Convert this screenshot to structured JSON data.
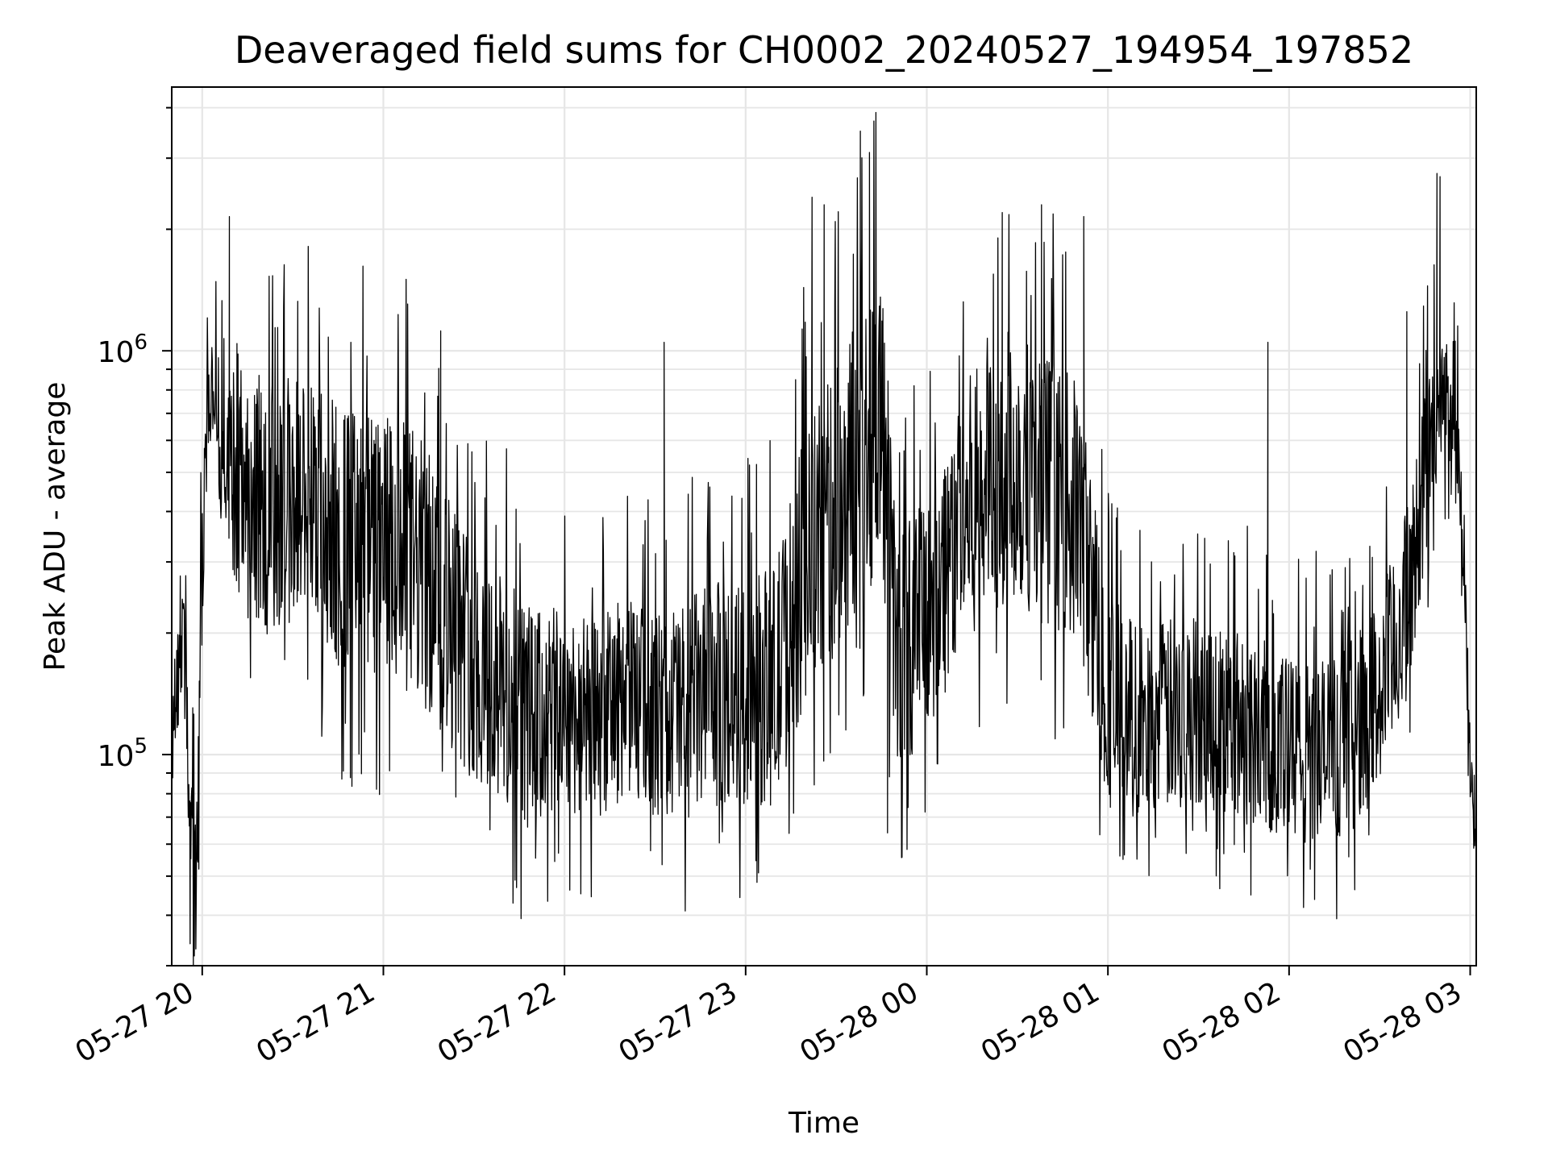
{
  "chart_data": {
    "type": "line",
    "title": "Deaveraged field sums for CH0002_20240527_194954_197852",
    "xlabel": "Time",
    "ylabel": "Peak ADU - average",
    "yscale": "log",
    "ylim": [
      30000,
      4500000
    ],
    "xlim": [
      "2024-05-27 19:49:54",
      "2024-05-28 03:02:00"
    ],
    "x_ticks": [
      {
        "x": "2024-05-27 20:00",
        "label": "05-27 20"
      },
      {
        "x": "2024-05-27 21:00",
        "label": "05-27 21"
      },
      {
        "x": "2024-05-27 22:00",
        "label": "05-27 22"
      },
      {
        "x": "2024-05-27 23:00",
        "label": "05-27 23"
      },
      {
        "x": "2024-05-28 00:00",
        "label": "05-28 00"
      },
      {
        "x": "2024-05-28 01:00",
        "label": "05-28 01"
      },
      {
        "x": "2024-05-28 02:00",
        "label": "05-28 02"
      },
      {
        "x": "2024-05-28 03:00",
        "label": "05-28 03"
      }
    ],
    "y_ticks": [
      {
        "value": 100000,
        "base": "10",
        "exp": "5"
      },
      {
        "value": 1000000,
        "base": "10",
        "exp": "6"
      }
    ],
    "grid": true,
    "line_color": "#000000",
    "grid_color": "#e6e6e6",
    "series": [
      {
        "x": [
          "2024-05-27 19:50",
          "2024-05-27 19:52",
          "2024-05-27 19:54",
          "2024-05-27 19:56",
          "2024-05-27 19:58",
          "2024-05-27 20:00",
          "2024-05-27 20:02",
          "2024-05-27 20:04",
          "2024-05-27 20:06",
          "2024-05-27 20:10",
          "2024-05-27 20:15",
          "2024-05-27 20:20",
          "2024-05-27 20:25",
          "2024-05-27 20:30",
          "2024-05-27 20:35",
          "2024-05-27 20:40",
          "2024-05-27 20:45",
          "2024-05-27 20:50",
          "2024-05-27 21:00",
          "2024-05-27 21:10",
          "2024-05-27 21:20",
          "2024-05-27 21:30",
          "2024-05-27 21:40",
          "2024-05-27 21:50",
          "2024-05-27 22:00",
          "2024-05-27 22:10",
          "2024-05-27 22:20",
          "2024-05-27 22:30",
          "2024-05-27 22:40",
          "2024-05-27 22:50",
          "2024-05-27 23:00",
          "2024-05-27 23:10",
          "2024-05-27 23:20",
          "2024-05-27 23:30",
          "2024-05-27 23:40",
          "2024-05-27 23:45",
          "2024-05-27 23:50",
          "2024-05-28 00:00",
          "2024-05-28 00:10",
          "2024-05-28 00:20",
          "2024-05-28 00:30",
          "2024-05-28 00:40",
          "2024-05-28 00:50",
          "2024-05-28 01:00",
          "2024-05-28 01:10",
          "2024-05-28 01:20",
          "2024-05-28 01:30",
          "2024-05-28 01:40",
          "2024-05-28 01:50",
          "2024-05-28 02:00",
          "2024-05-28 02:10",
          "2024-05-28 02:20",
          "2024-05-28 02:30",
          "2024-05-28 02:40",
          "2024-05-28 02:45",
          "2024-05-28 02:50",
          "2024-05-28 02:55",
          "2024-05-28 02:58",
          "2024-05-28 03:00",
          "2024-05-28 03:02"
        ],
        "values": [
          110000,
          160000,
          190000,
          60000,
          45000,
          300000,
          750000,
          800000,
          650000,
          550000,
          450000,
          420000,
          400000,
          440000,
          420000,
          380000,
          350000,
          330000,
          320000,
          300000,
          230000,
          170000,
          140000,
          120000,
          130000,
          120000,
          140000,
          125000,
          130000,
          140000,
          140000,
          150000,
          300000,
          400000,
          600000,
          700000,
          180000,
          220000,
          350000,
          500000,
          520000,
          450000,
          400000,
          140000,
          120000,
          125000,
          130000,
          120000,
          115000,
          100000,
          100000,
          110000,
          140000,
          250000,
          500000,
          700000,
          800000,
          300000,
          90000,
          70000
        ],
        "amplitude_dex": [
          0.15,
          0.15,
          0.15,
          0.2,
          0.2,
          0.2,
          0.15,
          0.12,
          0.22,
          0.3,
          0.32,
          0.32,
          0.32,
          0.32,
          0.32,
          0.34,
          0.34,
          0.34,
          0.34,
          0.34,
          0.32,
          0.3,
          0.3,
          0.28,
          0.25,
          0.25,
          0.25,
          0.25,
          0.28,
          0.28,
          0.28,
          0.3,
          0.34,
          0.36,
          0.38,
          0.38,
          0.3,
          0.3,
          0.32,
          0.34,
          0.34,
          0.34,
          0.32,
          0.28,
          0.24,
          0.24,
          0.24,
          0.24,
          0.24,
          0.24,
          0.24,
          0.24,
          0.24,
          0.24,
          0.22,
          0.2,
          0.15,
          0.12,
          0.1,
          0.1
        ],
        "peaks": [
          {
            "x": "2024-05-27 20:09",
            "value": 2150000
          },
          {
            "x": "2024-05-27 21:19",
            "value": 1120000
          },
          {
            "x": "2024-05-27 22:33",
            "value": 1050000
          },
          {
            "x": "2024-05-27 23:22",
            "value": 2400000
          },
          {
            "x": "2024-05-27 23:26",
            "value": 2300000
          },
          {
            "x": "2024-05-27 23:38",
            "value": 3500000
          },
          {
            "x": "2024-05-27 23:41",
            "value": 3100000
          },
          {
            "x": "2024-05-28 00:25",
            "value": 2200000
          },
          {
            "x": "2024-05-28 00:38",
            "value": 2300000
          },
          {
            "x": "2024-05-28 00:52",
            "value": 2150000
          },
          {
            "x": "2024-05-28 01:53",
            "value": 1050000
          },
          {
            "x": "2024-05-28 02:39",
            "value": 1250000
          },
          {
            "x": "2024-05-28 02:49",
            "value": 2750000
          },
          {
            "x": "2024-05-28 02:50",
            "value": 2700000
          }
        ],
        "troughs": [
          {
            "x": "2024-05-27 19:56",
            "value": 34000
          },
          {
            "x": "2024-05-27 21:58",
            "value": 57000
          },
          {
            "x": "2024-05-27 23:47",
            "value": 64000
          },
          {
            "x": "2024-05-28 01:05",
            "value": 55000
          },
          {
            "x": "2024-05-28 02:07",
            "value": 52000
          }
        ]
      }
    ]
  }
}
